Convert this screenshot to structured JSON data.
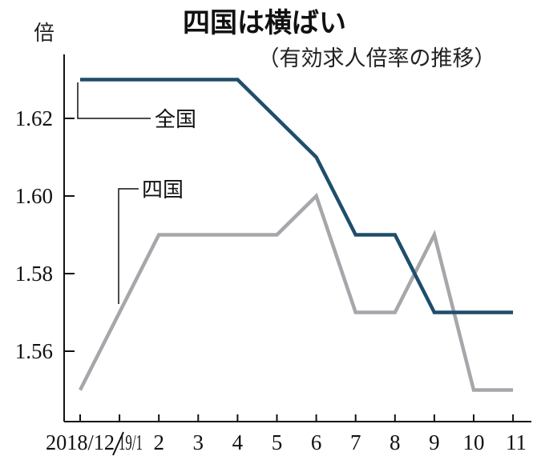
{
  "chart_data": {
    "type": "line",
    "title": "四国は横ばい",
    "subtitle": "（有効求人倍率の推移）",
    "ylabel": "倍",
    "categories": [
      "2018/12",
      "19/1",
      "2",
      "3",
      "4",
      "5",
      "6",
      "7",
      "8",
      "9",
      "10",
      "11"
    ],
    "y_ticks": [
      "1.56",
      "1.58",
      "1.60",
      "1.62"
    ],
    "ylim": [
      1.54,
      1.64
    ],
    "series": [
      {
        "name": "全国",
        "color": "#1f4e6b",
        "values": [
          1.63,
          1.63,
          1.63,
          1.63,
          1.63,
          1.62,
          1.61,
          1.59,
          1.59,
          1.57,
          1.57,
          1.57
        ]
      },
      {
        "name": "四国",
        "color": "#a6a6ab",
        "values": [
          1.55,
          1.57,
          1.59,
          1.59,
          1.59,
          1.59,
          1.6,
          1.57,
          1.57,
          1.59,
          1.55,
          1.55
        ]
      }
    ],
    "grid": false,
    "legend": "inline callouts"
  }
}
